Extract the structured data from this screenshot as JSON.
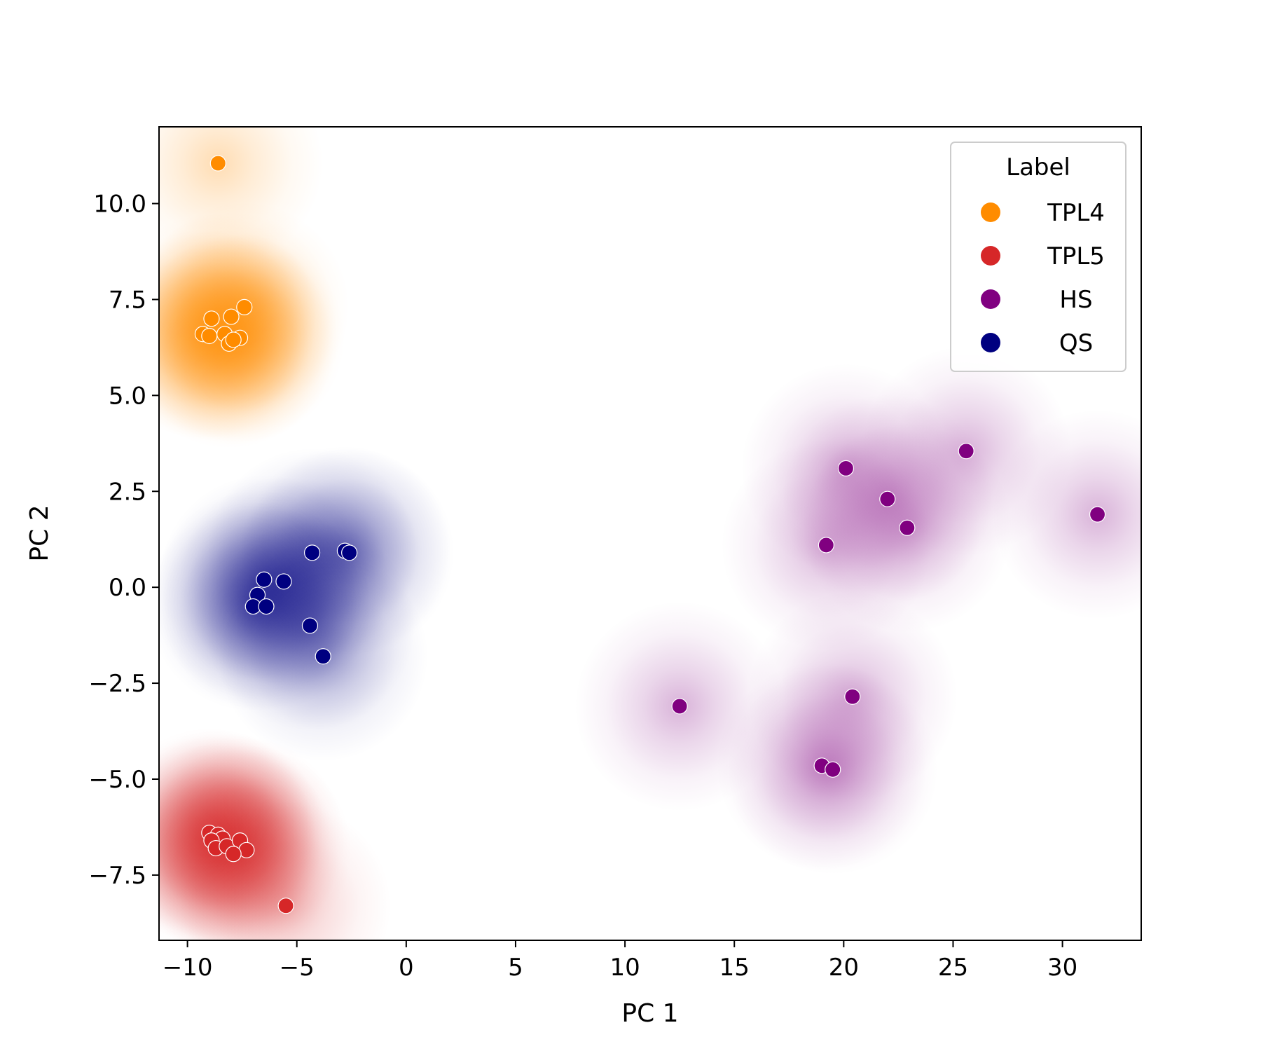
{
  "chart_data": {
    "type": "scatter",
    "title": "",
    "xlabel": "PC 1",
    "ylabel": "PC 2",
    "xlim": [
      -11.3,
      33.6
    ],
    "ylim": [
      -9.2,
      12.0
    ],
    "xticks": [
      -10,
      -5,
      0,
      5,
      10,
      15,
      20,
      25,
      30
    ],
    "yticks": [
      -7.5,
      -5.0,
      -2.5,
      0.0,
      2.5,
      5.0,
      7.5,
      10.0
    ],
    "xtick_labels": [
      "−10",
      "−5",
      "0",
      "5",
      "10",
      "15",
      "20",
      "25",
      "30"
    ],
    "ytick_labels": [
      "−7.5",
      "−5.0",
      "−2.5",
      "0.0",
      "2.5",
      "5.0",
      "7.5",
      "10.0"
    ],
    "grid": false,
    "legend": {
      "title": "Label",
      "position": "top-right"
    },
    "series": [
      {
        "name": "TPL4",
        "color": "#ff8c00",
        "points": [
          [
            -8.6,
            11.05
          ],
          [
            -7.4,
            7.3
          ],
          [
            -8.0,
            7.05
          ],
          [
            -8.9,
            7.0
          ],
          [
            -9.3,
            6.6
          ],
          [
            -9.0,
            6.55
          ],
          [
            -8.3,
            6.6
          ],
          [
            -7.6,
            6.5
          ],
          [
            -8.1,
            6.35
          ],
          [
            -7.9,
            6.45
          ]
        ]
      },
      {
        "name": "TPL5",
        "color": "#d62728",
        "points": [
          [
            -9.0,
            -6.4
          ],
          [
            -8.6,
            -6.45
          ],
          [
            -8.4,
            -6.55
          ],
          [
            -8.9,
            -6.6
          ],
          [
            -8.7,
            -6.8
          ],
          [
            -8.2,
            -6.75
          ],
          [
            -7.6,
            -6.6
          ],
          [
            -7.3,
            -6.85
          ],
          [
            -7.9,
            -6.95
          ],
          [
            -5.5,
            -8.3
          ]
        ]
      },
      {
        "name": "HS",
        "color": "#800080",
        "points": [
          [
            12.5,
            -3.1
          ],
          [
            19.2,
            1.1
          ],
          [
            20.1,
            3.1
          ],
          [
            22.0,
            2.3
          ],
          [
            22.9,
            1.55
          ],
          [
            25.6,
            3.55
          ],
          [
            31.6,
            1.9
          ],
          [
            20.4,
            -2.85
          ],
          [
            19.0,
            -4.65
          ],
          [
            19.5,
            -4.75
          ]
        ]
      },
      {
        "name": "QS",
        "color": "#000080",
        "points": [
          [
            -4.3,
            0.9
          ],
          [
            -2.8,
            0.95
          ],
          [
            -2.6,
            0.9
          ],
          [
            -6.5,
            0.2
          ],
          [
            -5.6,
            0.15
          ],
          [
            -6.8,
            -0.2
          ],
          [
            -7.0,
            -0.5
          ],
          [
            -6.4,
            -0.5
          ],
          [
            -4.4,
            -1.0
          ],
          [
            -3.8,
            -1.8
          ]
        ]
      }
    ]
  }
}
